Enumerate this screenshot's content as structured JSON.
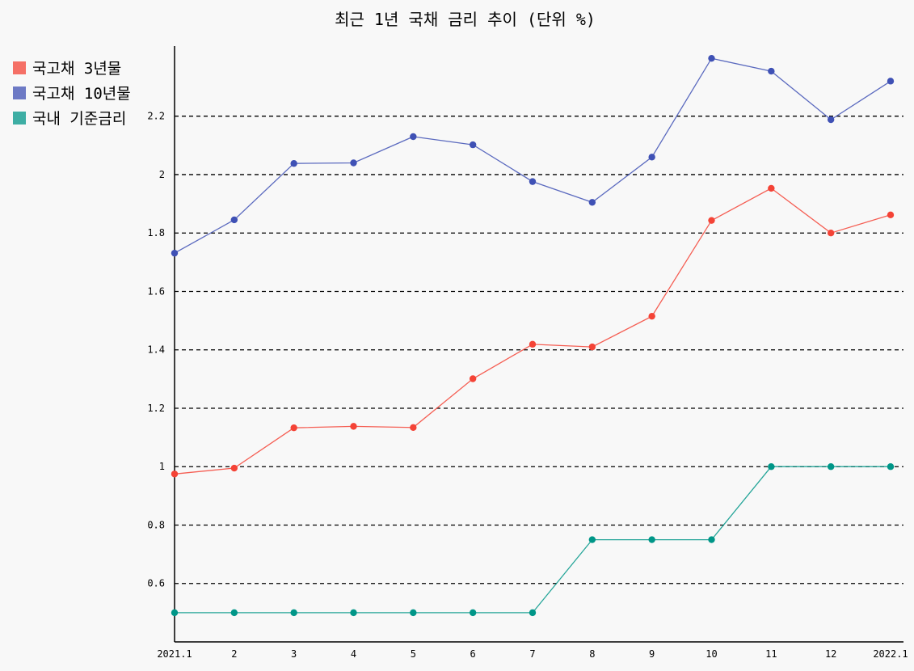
{
  "chart_data": {
    "type": "line",
    "title": "최근 1년 국채 금리 추이 (단위 %)",
    "categories": [
      "2021.1",
      "2",
      "3",
      "4",
      "5",
      "6",
      "7",
      "8",
      "9",
      "10",
      "11",
      "12",
      "2022.1"
    ],
    "series": [
      {
        "name": "국고채 3년물",
        "color": "#f44336",
        "values": [
          0.975,
          0.995,
          1.133,
          1.138,
          1.134,
          1.301,
          1.419,
          1.41,
          1.515,
          1.843,
          1.953,
          1.8,
          1.862
        ]
      },
      {
        "name": "국고채 10년물",
        "color": "#3f51b5",
        "values": [
          1.731,
          1.845,
          2.038,
          2.04,
          2.13,
          2.102,
          1.976,
          1.905,
          2.06,
          2.398,
          2.354,
          2.188,
          2.32
        ]
      },
      {
        "name": "국내 기준금리",
        "color": "#009688",
        "values": [
          0.5,
          0.5,
          0.5,
          0.5,
          0.5,
          0.5,
          0.5,
          0.75,
          0.75,
          0.75,
          1.0,
          1.0,
          1.0
        ]
      }
    ],
    "yticks": [
      0.6,
      0.8,
      1,
      1.2,
      1.4,
      1.6,
      1.8,
      2,
      2.2
    ],
    "ytick_labels": [
      "0.6",
      "0.8",
      "1",
      "1.2",
      "1.4",
      "1.6",
      "1.8",
      "2",
      "2.2"
    ],
    "ylim": [
      0.4,
      2.44
    ],
    "grid": "horizontal dashed",
    "legend_position": "top-left"
  }
}
